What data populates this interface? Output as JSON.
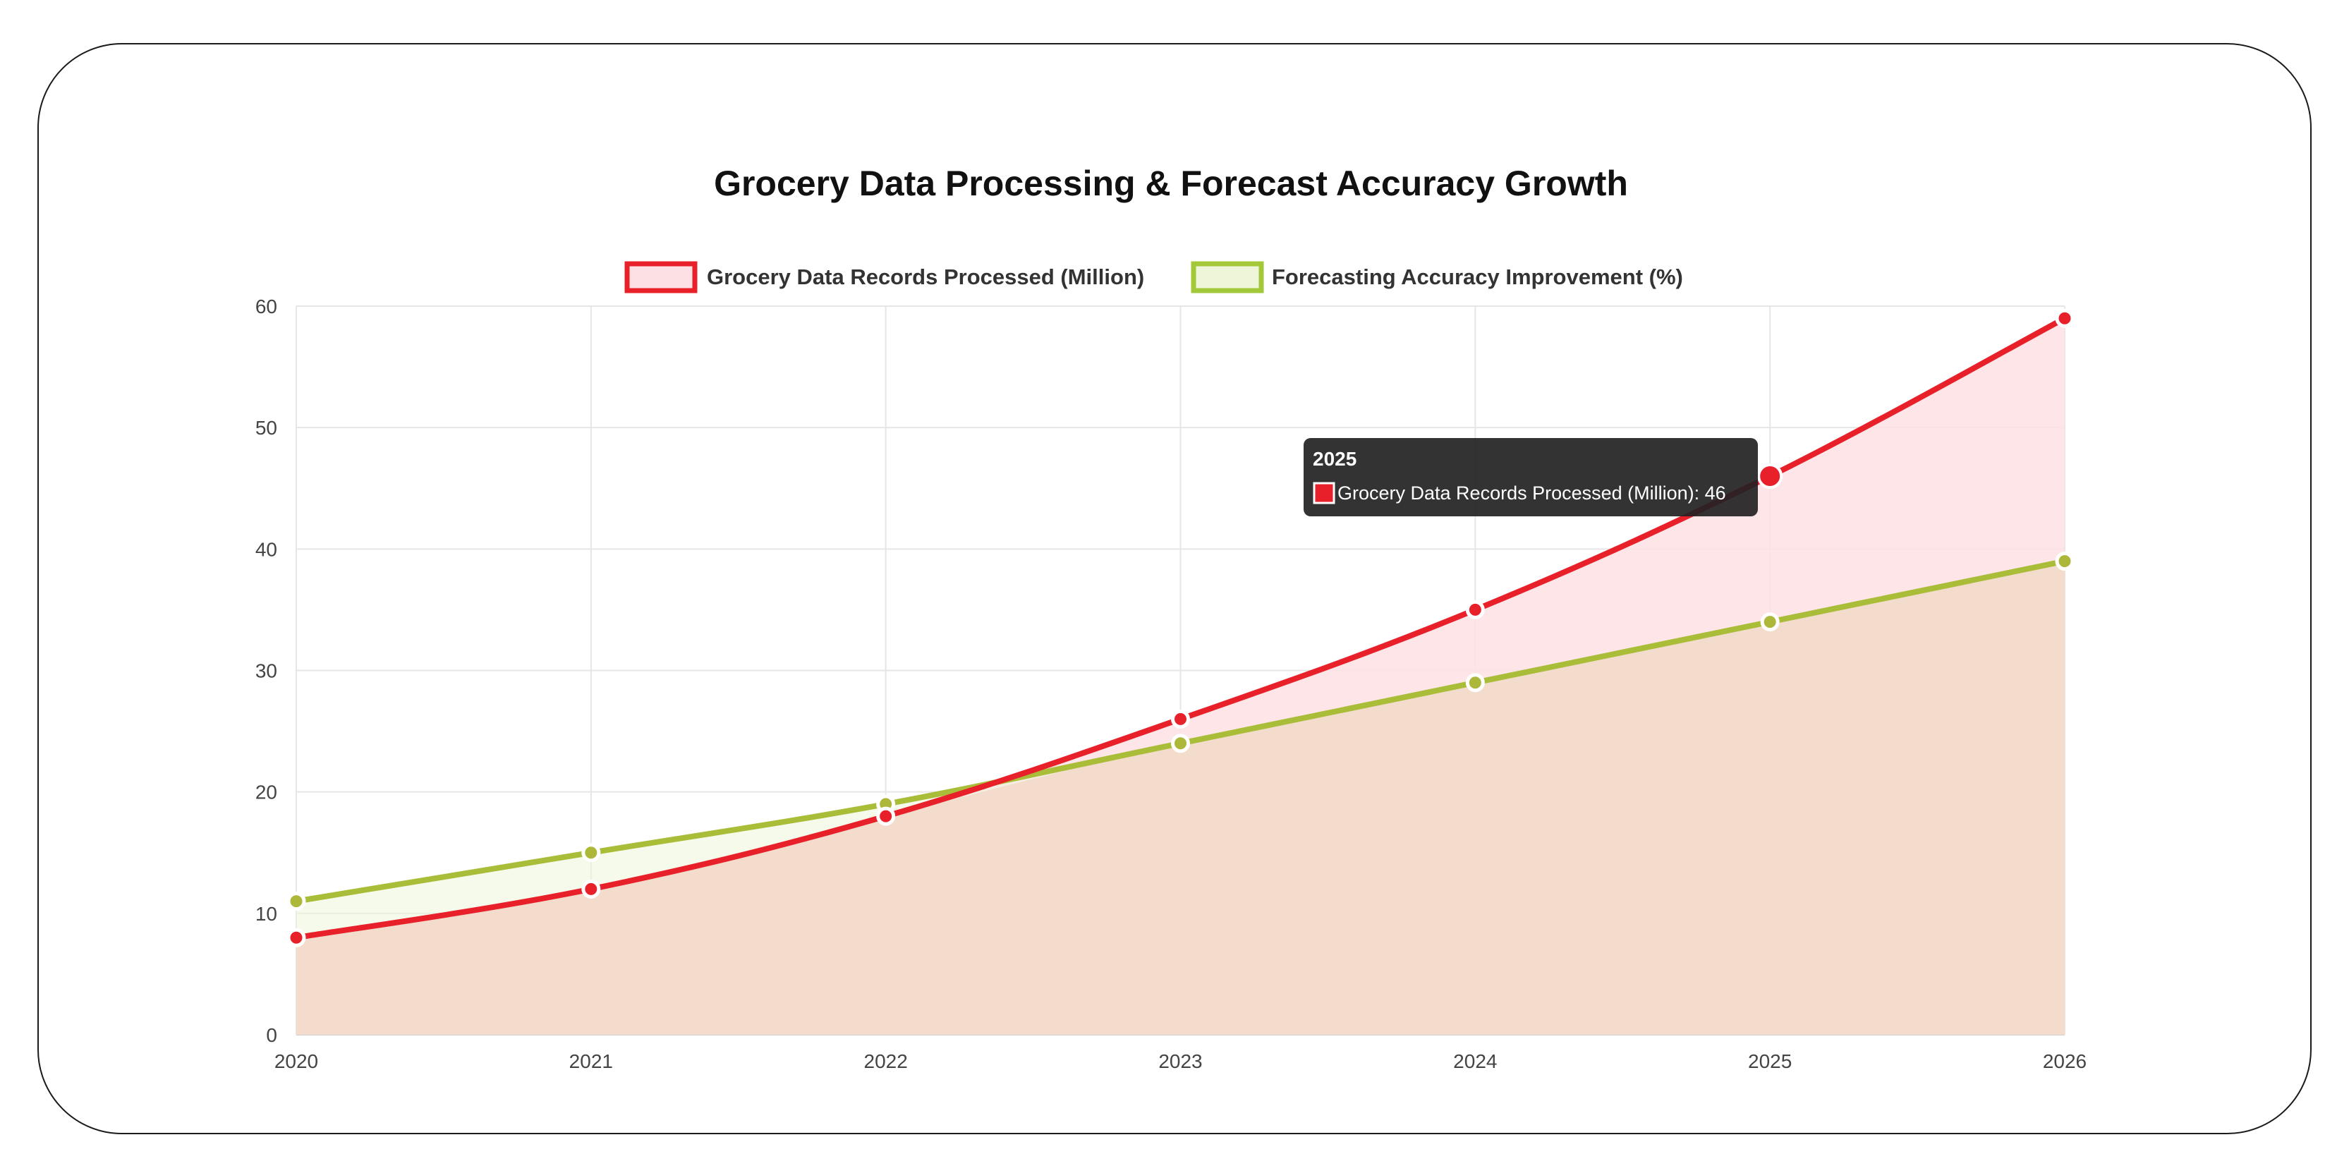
{
  "chart_data": {
    "type": "area",
    "title": "Grocery Data Processing & Forecast Accuracy Growth",
    "xlabel": "",
    "ylabel": "",
    "categories": [
      "2020",
      "2021",
      "2022",
      "2023",
      "2024",
      "2025",
      "2026"
    ],
    "ylim": [
      0,
      60
    ],
    "yticks": [
      0,
      10,
      20,
      30,
      40,
      50,
      60
    ],
    "grid": true,
    "legend_position": "top-center",
    "series": [
      {
        "name": "Grocery Data Records Processed (Million)",
        "values": [
          8,
          12,
          18,
          26,
          35,
          46,
          59
        ],
        "color": "#e8202a",
        "fill": "#fde0e4"
      },
      {
        "name": "Forecasting Accuracy Improvement (%)",
        "values": [
          11,
          15,
          19,
          24,
          29,
          34,
          39
        ],
        "color": "#a3c93a",
        "fill": "#eef5d8"
      }
    ],
    "tooltip": {
      "title": "2025",
      "label": "Grocery Data Records Processed (Million): 46"
    }
  }
}
